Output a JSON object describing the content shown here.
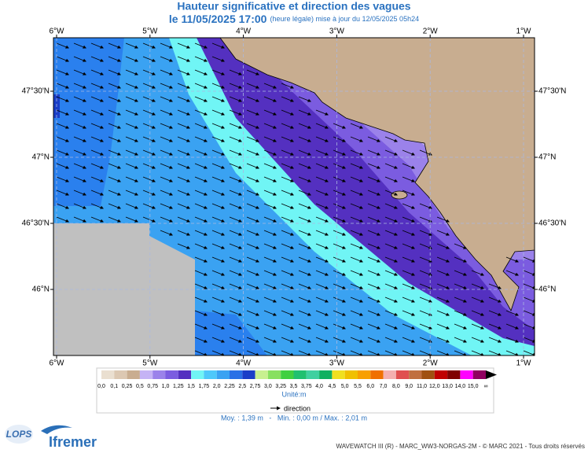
{
  "header": {
    "title": "Hauteur significative et direction des vagues",
    "date": "le 11/05/2025 17:00",
    "update": "(heure légale) mise à jour du 12/05/2025 05h24"
  },
  "map": {
    "longitudes": [
      "6°W",
      "5°W",
      "4°W",
      "3°W",
      "2°W",
      "1°W"
    ],
    "latitudes": [
      "47°30'N",
      "47°N",
      "46°30'N",
      "46°N"
    ]
  },
  "legend": {
    "classes": [
      {
        "label": "0,0",
        "color": "#eadfd0"
      },
      {
        "label": "0,1",
        "color": "#dcc8b2"
      },
      {
        "label": "0,25",
        "color": "#c9ad90"
      },
      {
        "label": "0,5",
        "color": "#c5b3f5"
      },
      {
        "label": "0,75",
        "color": "#9b82ea"
      },
      {
        "label": "1,0",
        "color": "#7b5ce0"
      },
      {
        "label": "1,25",
        "color": "#5430c0"
      },
      {
        "label": "1,5",
        "color": "#70f5f5"
      },
      {
        "label": "1,75",
        "color": "#4ec8fa"
      },
      {
        "label": "2,0",
        "color": "#3aa2f2"
      },
      {
        "label": "2,25",
        "color": "#2a70e6"
      },
      {
        "label": "2,5",
        "color": "#1a3ec8"
      },
      {
        "label": "2,75",
        "color": "#c8f090"
      },
      {
        "label": "3,0",
        "color": "#88e060"
      },
      {
        "label": "3,25",
        "color": "#40d040"
      },
      {
        "label": "3,5",
        "color": "#20c070"
      },
      {
        "label": "3,75",
        "color": "#40d0a0"
      },
      {
        "label": "4,0",
        "color": "#10b060"
      },
      {
        "label": "4,5",
        "color": "#f0e020"
      },
      {
        "label": "5,0",
        "color": "#f0c000"
      },
      {
        "label": "5,5",
        "color": "#f8a000"
      },
      {
        "label": "6,0",
        "color": "#f07000"
      },
      {
        "label": "7,0",
        "color": "#f4b0b0"
      },
      {
        "label": "8,0",
        "color": "#e05050"
      },
      {
        "label": "9,0",
        "color": "#c07040"
      },
      {
        "label": "11,0",
        "color": "#a05010"
      },
      {
        "label": "12,0",
        "color": "#c00000"
      },
      {
        "label": "13,0",
        "color": "#800000"
      },
      {
        "label": "14,0",
        "color": "#ff00ff"
      },
      {
        "label": "15,0",
        "color": "#900060"
      }
    ],
    "last_label": "∞",
    "unit": "Unité:m",
    "direction": "direction",
    "stats": "Moy. : 1,39 m   -   Min. : 0,00 m / Max. : 2,01 m"
  },
  "logos": {
    "lops": "LOPS",
    "ifremer": "Ifremer"
  },
  "footer": "WAVEWATCH III (R) - MARC_WW3-NORGAS-2M - © MARC 2021 - Tous droits réservés"
}
